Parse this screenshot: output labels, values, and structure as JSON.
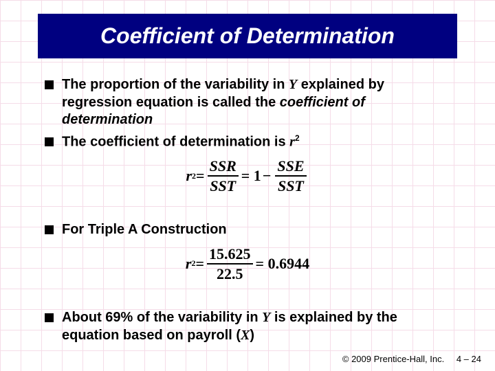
{
  "title": "Coefficient of Determination",
  "bullets": {
    "b1_pre": "The proportion of the variability in ",
    "b1_y": "Y",
    "b1_mid": " explained by regression equation is called the ",
    "b1_emph": "coefficient of determination",
    "b2_pre": "The coefficient of determination is ",
    "b2_r": "r",
    "b2_sup": "2",
    "b3": "For Triple A Construction",
    "b4_pre": "About 69% of the variability in ",
    "b4_y": "Y",
    "b4_mid": " is explained by the equation based on payroll (",
    "b4_x": "X",
    "b4_post": ")"
  },
  "eq1": {
    "lhs_r": "r",
    "lhs_sup": "2",
    "eq": " = ",
    "f1_num": "SSR",
    "f1_den": "SST",
    "mid": " = 1",
    "minus": "−",
    "f2_num": "SSE",
    "f2_den": "SST"
  },
  "eq2": {
    "lhs_r": "r",
    "lhs_sup": "2",
    "eq": " = ",
    "f1_num": "15.625",
    "f1_den": "22.5",
    "rhs": " = 0.6944"
  },
  "footer": {
    "copyright": "© 2009 Prentice-Hall, Inc.",
    "page_prefix": "4 – ",
    "page_num": "24"
  }
}
